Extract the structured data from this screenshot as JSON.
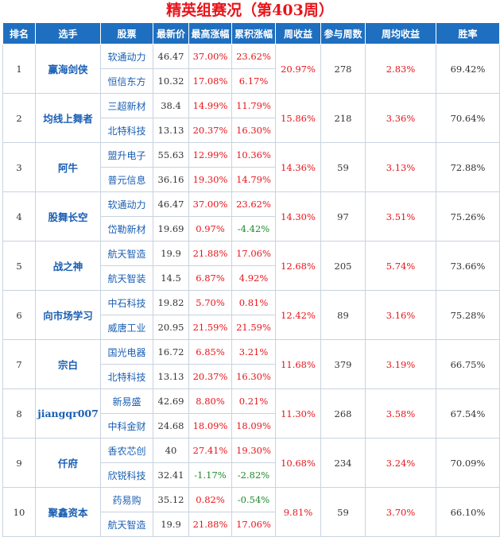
{
  "title": "精英组赛况（第403周）",
  "headers": [
    "排名",
    "选手",
    "股票",
    "最新价",
    "最高涨幅",
    "累积涨幅",
    "周收益",
    "参与周数",
    "周均收益",
    "胜率"
  ],
  "colors": {
    "header_bg": "#1e6fc0",
    "title": "#e8141a",
    "positive": "#e8141a",
    "negative": "#1a8a2a",
    "link": "#1a5fb4"
  },
  "rows": [
    {
      "rank": "1",
      "player": "赢海剑侠",
      "week_return": "20.97%",
      "weeks": "278",
      "avg_return": "2.83%",
      "win_rate": "69.42%",
      "stocks": [
        {
          "name": "软通动力",
          "price": "46.47",
          "max_gain": "37.00%",
          "cum_gain": "23.62%"
        },
        {
          "name": "恒信东方",
          "price": "10.32",
          "max_gain": "17.08%",
          "cum_gain": "6.17%"
        }
      ]
    },
    {
      "rank": "2",
      "player": "均线上舞者",
      "week_return": "15.86%",
      "weeks": "218",
      "avg_return": "3.36%",
      "win_rate": "70.64%",
      "stocks": [
        {
          "name": "三超新材",
          "price": "38.4",
          "max_gain": "14.99%",
          "cum_gain": "11.79%"
        },
        {
          "name": "北特科技",
          "price": "13.13",
          "max_gain": "20.37%",
          "cum_gain": "16.30%"
        }
      ]
    },
    {
      "rank": "3",
      "player": "阿牛",
      "week_return": "14.36%",
      "weeks": "59",
      "avg_return": "3.13%",
      "win_rate": "72.88%",
      "stocks": [
        {
          "name": "盟升电子",
          "price": "55.63",
          "max_gain": "12.99%",
          "cum_gain": "10.36%"
        },
        {
          "name": "普元信息",
          "price": "36.16",
          "max_gain": "19.30%",
          "cum_gain": "14.79%"
        }
      ]
    },
    {
      "rank": "4",
      "player": "股舞长空",
      "week_return": "14.30%",
      "weeks": "97",
      "avg_return": "3.51%",
      "win_rate": "75.26%",
      "stocks": [
        {
          "name": "软通动力",
          "price": "46.47",
          "max_gain": "37.00%",
          "cum_gain": "23.62%"
        },
        {
          "name": "岱勒新材",
          "price": "19.69",
          "max_gain": "0.97%",
          "cum_gain": "-4.42%"
        }
      ]
    },
    {
      "rank": "5",
      "player": "战之神",
      "week_return": "12.68%",
      "weeks": "205",
      "avg_return": "5.74%",
      "win_rate": "73.66%",
      "stocks": [
        {
          "name": "航天智造",
          "price": "19.9",
          "max_gain": "21.88%",
          "cum_gain": "17.06%"
        },
        {
          "name": "航天智装",
          "price": "14.5",
          "max_gain": "6.87%",
          "cum_gain": "4.92%"
        }
      ]
    },
    {
      "rank": "6",
      "player": "向市场学习",
      "week_return": "12.42%",
      "weeks": "89",
      "avg_return": "3.16%",
      "win_rate": "75.28%",
      "stocks": [
        {
          "name": "中石科技",
          "price": "19.82",
          "max_gain": "5.70%",
          "cum_gain": "0.81%"
        },
        {
          "name": "威唐工业",
          "price": "20.95",
          "max_gain": "21.59%",
          "cum_gain": "21.59%"
        }
      ]
    },
    {
      "rank": "7",
      "player": "宗白",
      "week_return": "11.68%",
      "weeks": "379",
      "avg_return": "3.19%",
      "win_rate": "66.75%",
      "stocks": [
        {
          "name": "国光电器",
          "price": "16.72",
          "max_gain": "6.85%",
          "cum_gain": "3.21%"
        },
        {
          "name": "北特科技",
          "price": "13.13",
          "max_gain": "20.37%",
          "cum_gain": "16.30%"
        }
      ]
    },
    {
      "rank": "8",
      "player": "jiangqr007",
      "week_return": "11.30%",
      "weeks": "268",
      "avg_return": "3.58%",
      "win_rate": "67.54%",
      "stocks": [
        {
          "name": "新易盛",
          "price": "42.69",
          "max_gain": "8.80%",
          "cum_gain": "0.21%"
        },
        {
          "name": "中科金财",
          "price": "24.68",
          "max_gain": "18.09%",
          "cum_gain": "18.09%"
        }
      ]
    },
    {
      "rank": "9",
      "player": "仟府",
      "week_return": "10.68%",
      "weeks": "234",
      "avg_return": "3.24%",
      "win_rate": "70.09%",
      "stocks": [
        {
          "name": "香农芯创",
          "price": "40",
          "max_gain": "27.41%",
          "cum_gain": "19.30%"
        },
        {
          "name": "欣锐科技",
          "price": "32.41",
          "max_gain": "-1.17%",
          "cum_gain": "-2.82%"
        }
      ]
    },
    {
      "rank": "10",
      "player": "聚鑫资本",
      "week_return": "9.81%",
      "weeks": "59",
      "avg_return": "3.70%",
      "win_rate": "66.10%",
      "stocks": [
        {
          "name": "药易购",
          "price": "35.12",
          "max_gain": "0.82%",
          "cum_gain": "-0.54%"
        },
        {
          "name": "航天智造",
          "price": "19.9",
          "max_gain": "21.88%",
          "cum_gain": "17.06%"
        }
      ]
    }
  ]
}
